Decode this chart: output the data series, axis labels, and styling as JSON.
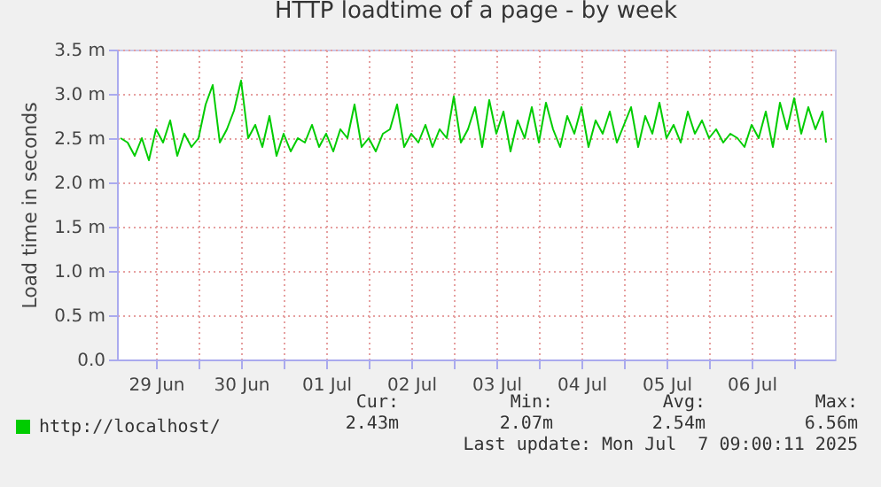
{
  "chart_data": {
    "type": "line",
    "title": "HTTP loadtime of a page - by week",
    "ylabel": "Load time in seconds",
    "x": [
      "2025-06-29T02:00",
      "2025-06-29T04:00",
      "2025-06-29T06:00",
      "2025-06-29T08:00",
      "2025-06-29T10:00",
      "2025-06-29T12:00",
      "2025-06-29T14:00",
      "2025-06-29T16:00",
      "2025-06-29T18:00",
      "2025-06-29T20:00",
      "2025-06-29T22:00",
      "2025-06-30T00:00",
      "2025-06-30T02:00",
      "2025-06-30T04:00",
      "2025-06-30T06:00",
      "2025-06-30T08:00",
      "2025-06-30T10:00",
      "2025-06-30T12:00",
      "2025-06-30T14:00",
      "2025-06-30T16:00",
      "2025-06-30T18:00",
      "2025-06-30T20:00",
      "2025-06-30T22:00",
      "2025-07-01T00:00",
      "2025-07-01T02:00",
      "2025-07-01T04:00",
      "2025-07-01T06:00",
      "2025-07-01T08:00",
      "2025-07-01T10:00",
      "2025-07-01T12:00",
      "2025-07-01T14:00",
      "2025-07-01T16:00",
      "2025-07-01T18:00",
      "2025-07-01T20:00",
      "2025-07-01T22:00",
      "2025-07-02T00:00",
      "2025-07-02T02:00",
      "2025-07-02T04:00",
      "2025-07-02T06:00",
      "2025-07-02T08:00",
      "2025-07-02T10:00",
      "2025-07-02T12:00",
      "2025-07-02T14:00",
      "2025-07-02T16:00",
      "2025-07-02T18:00",
      "2025-07-02T20:00",
      "2025-07-02T22:00",
      "2025-07-03T00:00",
      "2025-07-03T02:00",
      "2025-07-03T04:00",
      "2025-07-03T06:00",
      "2025-07-03T08:00",
      "2025-07-03T10:00",
      "2025-07-03T12:00",
      "2025-07-03T14:00",
      "2025-07-03T16:00",
      "2025-07-03T18:00",
      "2025-07-03T20:00",
      "2025-07-03T22:00",
      "2025-07-04T00:00",
      "2025-07-04T02:00",
      "2025-07-04T04:00",
      "2025-07-04T06:00",
      "2025-07-04T08:00",
      "2025-07-04T10:00",
      "2025-07-04T12:00",
      "2025-07-04T14:00",
      "2025-07-04T16:00",
      "2025-07-04T18:00",
      "2025-07-04T20:00",
      "2025-07-04T22:00",
      "2025-07-05T00:00",
      "2025-07-05T02:00",
      "2025-07-05T04:00",
      "2025-07-05T06:00",
      "2025-07-05T08:00",
      "2025-07-05T10:00",
      "2025-07-05T12:00",
      "2025-07-05T14:00",
      "2025-07-05T16:00",
      "2025-07-05T18:00",
      "2025-07-05T20:00",
      "2025-07-05T22:00",
      "2025-07-06T00:00",
      "2025-07-06T02:00",
      "2025-07-06T04:00",
      "2025-07-06T06:00",
      "2025-07-06T08:00",
      "2025-07-06T10:00",
      "2025-07-06T12:00",
      "2025-07-06T14:00",
      "2025-07-06T16:00",
      "2025-07-06T18:00",
      "2025-07-06T20:00",
      "2025-07-06T22:00",
      "2025-07-07T00:00",
      "2025-07-07T02:00",
      "2025-07-07T04:00",
      "2025-07-07T06:00",
      "2025-07-07T08:00",
      "2025-07-07T09:00"
    ],
    "series": [
      {
        "name": "http://localhost/",
        "color": "#00cc00",
        "values": [
          2.5,
          2.45,
          2.3,
          2.5,
          2.25,
          2.6,
          2.45,
          2.7,
          2.3,
          2.55,
          2.4,
          2.5,
          2.88,
          3.1,
          2.45,
          2.6,
          2.81,
          3.15,
          2.5,
          2.65,
          2.4,
          2.75,
          2.3,
          2.55,
          2.35,
          2.5,
          2.45,
          2.65,
          2.4,
          2.55,
          2.35,
          2.6,
          2.5,
          2.88,
          2.4,
          2.5,
          2.35,
          2.55,
          2.6,
          2.88,
          2.4,
          2.55,
          2.45,
          2.65,
          2.4,
          2.6,
          2.5,
          2.97,
          2.45,
          2.6,
          2.85,
          2.4,
          2.93,
          2.55,
          2.8,
          2.35,
          2.7,
          2.5,
          2.85,
          2.45,
          2.9,
          2.6,
          2.4,
          2.75,
          2.55,
          2.85,
          2.4,
          2.7,
          2.55,
          2.8,
          2.45,
          2.65,
          2.85,
          2.4,
          2.75,
          2.55,
          2.9,
          2.5,
          2.65,
          2.45,
          2.8,
          2.55,
          2.7,
          2.5,
          2.6,
          2.45,
          2.55,
          2.5,
          2.4,
          2.65,
          2.5,
          2.8,
          2.4,
          2.9,
          2.6,
          2.95,
          2.55,
          2.85,
          2.6,
          2.8,
          2.45
        ]
      }
    ],
    "xlim": [
      "2025-06-29T01:00",
      "2025-07-07T11:30"
    ],
    "xticks": [
      {
        "value": "2025-06-29T12:00",
        "label": "29 Jun"
      },
      {
        "value": "2025-06-30T00:00",
        "label": null
      },
      {
        "value": "2025-06-30T12:00",
        "label": "30 Jun"
      },
      {
        "value": "2025-07-01T00:00",
        "label": null
      },
      {
        "value": "2025-07-01T12:00",
        "label": "01 Jul"
      },
      {
        "value": "2025-07-02T00:00",
        "label": null
      },
      {
        "value": "2025-07-02T12:00",
        "label": "02 Jul"
      },
      {
        "value": "2025-07-03T00:00",
        "label": null
      },
      {
        "value": "2025-07-03T12:00",
        "label": "03 Jul"
      },
      {
        "value": "2025-07-04T00:00",
        "label": null
      },
      {
        "value": "2025-07-04T12:00",
        "label": "04 Jul"
      },
      {
        "value": "2025-07-05T00:00",
        "label": null
      },
      {
        "value": "2025-07-05T12:00",
        "label": "05 Jul"
      },
      {
        "value": "2025-07-06T00:00",
        "label": null
      },
      {
        "value": "2025-07-06T12:00",
        "label": "06 Jul"
      },
      {
        "value": "2025-07-07T00:00",
        "label": null
      }
    ],
    "ylim": [
      0,
      3.5
    ],
    "yticks": [
      {
        "value": 0,
        "label": "0.0"
      },
      {
        "value": 0.5,
        "label": "0.5 m"
      },
      {
        "value": 1,
        "label": "1.0 m"
      },
      {
        "value": 1.5,
        "label": "1.5 m"
      },
      {
        "value": 2,
        "label": "2.0 m"
      },
      {
        "value": 2.5,
        "label": "2.5 m"
      },
      {
        "value": 3,
        "label": "3.0 m"
      },
      {
        "value": 3.5,
        "label": "3.5 m"
      }
    ],
    "grid": true,
    "legend": "bottom left",
    "annotations": [
      "Cur:",
      "Min:",
      "Avg:",
      "Max:",
      "2.43m",
      "2.07m",
      "2.54m",
      "6.56m",
      "Last update: Mon Jul  7 09:00:11 2025"
    ]
  }
}
